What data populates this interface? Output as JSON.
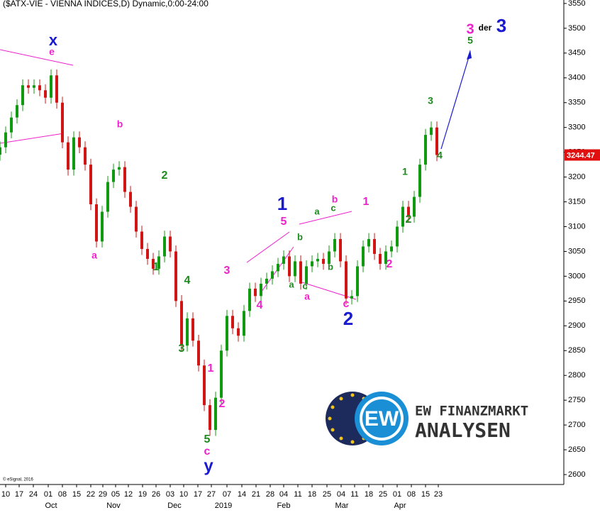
{
  "chart_data": {
    "type": "candlestick",
    "title": "($ATX-VIE - VIENNA INDICES,D) Dynamic,0:00-24:00",
    "copyright": "© eSignal, 2016",
    "logo": {
      "mark": "EW",
      "line1": "EW FINANZMARKT",
      "line2": "ANALYSEN"
    },
    "up_color": "#119a11",
    "down_color": "#d11414",
    "last_color": "#e01010",
    "x": [
      -2,
      0,
      2,
      4,
      6,
      8,
      10,
      12,
      14,
      16,
      18,
      20,
      22,
      24,
      26,
      28,
      30,
      32,
      34,
      36,
      38,
      40,
      42,
      44,
      46,
      48,
      50,
      52,
      54,
      56,
      58,
      60,
      62,
      64,
      66,
      68,
      70,
      72,
      74,
      76,
      78,
      80,
      82,
      84,
      86,
      88,
      90,
      92,
      94,
      96,
      98,
      100,
      102,
      104,
      106,
      108,
      110,
      112,
      114,
      116,
      118,
      120,
      122,
      124,
      126,
      128,
      130,
      132,
      134,
      136,
      138,
      140,
      142,
      144,
      146,
      148,
      150,
      152
    ],
    "open": [
      3245,
      3260,
      3290,
      3320,
      3345,
      3385,
      3380,
      3385,
      3375,
      3360,
      3405,
      3350,
      3270,
      3215,
      3280,
      3260,
      3225,
      3145,
      3070,
      3130,
      3190,
      3215,
      3220,
      3170,
      3140,
      3090,
      3055,
      3035,
      3015,
      3040,
      3080,
      3050,
      2950,
      2860,
      2915,
      2870,
      2820,
      2740,
      2690,
      2755,
      2850,
      2920,
      2895,
      2880,
      2930,
      2975,
      2960,
      2985,
      2995,
      3010,
      3025,
      3040,
      3000,
      3030,
      2985,
      3020,
      3030,
      3035,
      3025,
      3050,
      3075,
      3030,
      2955,
      2960,
      3020,
      3060,
      3075,
      3045,
      3025,
      3050,
      3060,
      3100,
      3140,
      3120,
      3160,
      3225,
      3285,
      3300
    ],
    "high": [
      3272,
      3302,
      3332,
      3357,
      3397,
      3397,
      3397,
      3397,
      3387,
      3417,
      3417,
      3362,
      3282,
      3292,
      3292,
      3272,
      3237,
      3157,
      3142,
      3202,
      3227,
      3232,
      3232,
      3182,
      3152,
      3102,
      3067,
      3047,
      3052,
      3092,
      3092,
      3062,
      2962,
      2927,
      2927,
      2882,
      2832,
      2752,
      2767,
      2862,
      2932,
      2932,
      2907,
      2942,
      2987,
      2987,
      2997,
      3007,
      3022,
      3037,
      3052,
      3052,
      3042,
      3042,
      3032,
      3042,
      3047,
      3047,
      3062,
      3087,
      3087,
      3042,
      2972,
      3032,
      3072,
      3087,
      3087,
      3057,
      3062,
      3072,
      3112,
      3152,
      3152,
      3172,
      3237,
      3297,
      3312,
      3312
    ],
    "low": [
      3233,
      3248,
      3278,
      3308,
      3333,
      3368,
      3368,
      3363,
      3348,
      3348,
      3338,
      3258,
      3203,
      3203,
      3248,
      3213,
      3133,
      3058,
      3058,
      3118,
      3178,
      3203,
      3158,
      3128,
      3078,
      3043,
      3023,
      3003,
      3003,
      3028,
      3038,
      2938,
      2848,
      2848,
      2858,
      2808,
      2728,
      2678,
      2678,
      2743,
      2838,
      2883,
      2868,
      2868,
      2918,
      2948,
      2948,
      2973,
      2983,
      2998,
      3013,
      2988,
      2988,
      2973,
      2973,
      3008,
      3018,
      3013,
      3013,
      3038,
      3018,
      2943,
      2943,
      2948,
      3008,
      3048,
      3033,
      3013,
      3013,
      3038,
      3048,
      3088,
      3108,
      3108,
      3148,
      3213,
      3273,
      3232
    ],
    "close": [
      3260,
      3290,
      3320,
      3345,
      3385,
      3380,
      3385,
      3375,
      3360,
      3405,
      3350,
      3270,
      3215,
      3280,
      3260,
      3225,
      3145,
      3070,
      3130,
      3190,
      3215,
      3220,
      3170,
      3140,
      3090,
      3055,
      3035,
      3015,
      3040,
      3080,
      3050,
      2950,
      2860,
      2915,
      2870,
      2820,
      2740,
      2690,
      2755,
      2850,
      2920,
      2895,
      2880,
      2930,
      2975,
      2960,
      2985,
      2995,
      3010,
      3025,
      3040,
      3000,
      3030,
      2985,
      3020,
      3030,
      3035,
      3025,
      3050,
      3075,
      3030,
      2955,
      2960,
      3020,
      3060,
      3075,
      3045,
      3025,
      3050,
      3060,
      3100,
      3140,
      3120,
      3160,
      3225,
      3285,
      3300,
      3244.47
    ],
    "xlim": [
      -2,
      196.75
    ],
    "ylim": [
      2580,
      3557
    ],
    "yticks": [
      2600,
      2650,
      2700,
      2750,
      2800,
      2850,
      2900,
      2950,
      3000,
      3050,
      3100,
      3150,
      3200,
      3250,
      3300,
      3350,
      3400,
      3450,
      3500,
      3550
    ],
    "xticks": [
      {
        "value": 0,
        "label": "10"
      },
      {
        "value": 4.75,
        "label": "17"
      },
      {
        "value": 9.75,
        "label": "24"
      },
      {
        "value": 15,
        "label": "01"
      },
      {
        "value": 20,
        "label": "08"
      },
      {
        "value": 25,
        "label": "15"
      },
      {
        "value": 30,
        "label": "22"
      },
      {
        "value": 34.25,
        "label": "29"
      },
      {
        "value": 38.75,
        "label": "05"
      },
      {
        "value": 43.25,
        "label": "12"
      },
      {
        "value": 48.25,
        "label": "19"
      },
      {
        "value": 53,
        "label": "26"
      },
      {
        "value": 58,
        "label": "03"
      },
      {
        "value": 62.75,
        "label": "10"
      },
      {
        "value": 67.75,
        "label": "17"
      },
      {
        "value": 72.5,
        "label": "27"
      },
      {
        "value": 78,
        "label": "07"
      },
      {
        "value": 83.25,
        "label": "14"
      },
      {
        "value": 88.25,
        "label": "21"
      },
      {
        "value": 93.25,
        "label": "28"
      },
      {
        "value": 98,
        "label": "04"
      },
      {
        "value": 103,
        "label": "11"
      },
      {
        "value": 108,
        "label": "18"
      },
      {
        "value": 113.25,
        "label": "25"
      },
      {
        "value": 118.25,
        "label": "04"
      },
      {
        "value": 123,
        "label": "11"
      },
      {
        "value": 128,
        "label": "18"
      },
      {
        "value": 133,
        "label": "25"
      },
      {
        "value": 138,
        "label": "01"
      },
      {
        "value": 143,
        "label": "08"
      },
      {
        "value": 148,
        "label": "15"
      },
      {
        "value": 152.5,
        "label": "23"
      }
    ],
    "month_ticks": [
      {
        "value": 16,
        "label": "Oct"
      },
      {
        "value": 38,
        "label": "Nov"
      },
      {
        "value": 59.5,
        "label": "Dec"
      },
      {
        "value": 76.75,
        "label": "2019"
      },
      {
        "value": 98,
        "label": "Feb"
      },
      {
        "value": 118.5,
        "label": "Mar"
      },
      {
        "value": 139,
        "label": "Apr"
      }
    ],
    "annotations": [
      {
        "text": "x",
        "color": "#1a1ad0"
      },
      {
        "text": "e",
        "color": "#ee22cc"
      },
      {
        "text": "b",
        "color": "#ee22cc"
      },
      {
        "text": "a",
        "color": "#ee22cc"
      },
      {
        "text": "2",
        "color": "#1d8a1d"
      },
      {
        "text": "1",
        "color": "#1d8a1d"
      },
      {
        "text": "4",
        "color": "#1d8a1d"
      },
      {
        "text": "3",
        "color": "#1d8a1d"
      },
      {
        "text": "1",
        "color": "#ee22cc"
      },
      {
        "text": "2",
        "color": "#ee22cc"
      },
      {
        "text": "3",
        "color": "#ee22cc"
      },
      {
        "text": "4",
        "color": "#ee22cc"
      },
      {
        "text": "5",
        "color": "#1d8a1d"
      },
      {
        "text": "c",
        "color": "#ee22cc"
      },
      {
        "text": "y",
        "color": "#1a1ad0"
      },
      {
        "text": "1",
        "color": "#1a1ad0"
      },
      {
        "text": "5",
        "color": "#ee22cc"
      },
      {
        "text": "b",
        "color": "#1d8a1d"
      },
      {
        "text": "a",
        "color": "#1d8a1d"
      },
      {
        "text": "c",
        "color": "#1d8a1d"
      },
      {
        "text": "a",
        "color": "#ee22cc"
      },
      {
        "text": "a",
        "color": "#1d8a1d"
      },
      {
        "text": "c",
        "color": "#1d8a1d"
      },
      {
        "text": "b",
        "color": "#ee22cc"
      },
      {
        "text": "b",
        "color": "#1d8a1d"
      },
      {
        "text": "1",
        "color": "#ee22cc"
      },
      {
        "text": "2",
        "color": "#1d8a1d"
      },
      {
        "text": "2",
        "color": "#ee22cc"
      },
      {
        "text": "c",
        "color": "#ee22cc"
      },
      {
        "text": "2",
        "color": "#1a1ad0"
      },
      {
        "text": "1",
        "color": "#1d8a1d"
      },
      {
        "text": "3",
        "color": "#1d8a1d"
      },
      {
        "text": "4",
        "color": "#1d8a1d"
      },
      {
        "text": "3",
        "color": "#ee22cc"
      },
      {
        "text": "der",
        "color": "#000000"
      },
      {
        "text": "3",
        "color": "#1a1ad0"
      },
      {
        "text": "5",
        "color": "#1d8a1d"
      }
    ]
  }
}
